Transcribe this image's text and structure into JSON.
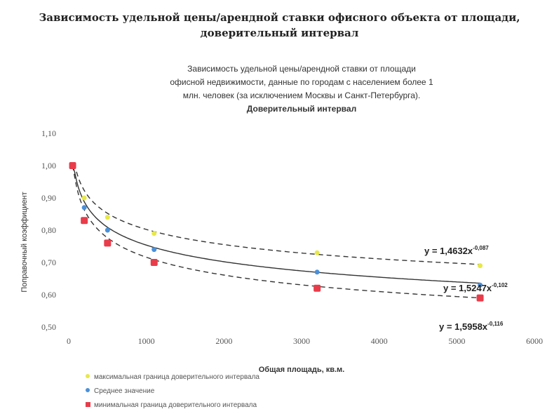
{
  "page_title": {
    "line1": "Зависимость удельной цены/арендной ставки офисного объекта от площади,",
    "line2": "доверительный интервал"
  },
  "chart_data": {
    "type": "scatter",
    "title_lines": [
      "Зависимость удельной цены/арендной ставки от площади",
      "офисной недвижимости, данные по городам с населением более 1",
      "млн. человек (за исключением Москвы и Санкт-Петербурга).",
      "Доверительный интервал"
    ],
    "xlabel": "Общая площадь, кв.м.",
    "ylabel": "Поправочный коэффициент",
    "xlim": [
      0,
      6000
    ],
    "ylim": [
      0.5,
      1.1
    ],
    "x_ticks": [
      "0",
      "1000",
      "2000",
      "3000",
      "4000",
      "5000",
      "6000"
    ],
    "y_ticks": [
      "0,50",
      "0,60",
      "0,70",
      "0,80",
      "0,90",
      "1,00",
      "1,10"
    ],
    "grid": false,
    "legend_position": "bottom-left",
    "series": [
      {
        "name": "максимальная граница доверительного интервала",
        "color": "#e8e84a",
        "marker": "circle",
        "x": [
          50,
          200,
          500,
          1100,
          3200,
          5300
        ],
        "y": [
          1.0,
          0.9,
          0.84,
          0.79,
          0.73,
          0.69
        ],
        "trend": {
          "a": 1.4632,
          "b": -0.087,
          "dash": true
        },
        "equation": {
          "base": "y = 1,4632x",
          "exp": "-0,087"
        }
      },
      {
        "name": "Среднее значение",
        "color": "#4a90d9",
        "marker": "circle",
        "x": [
          50,
          200,
          500,
          1100,
          3200,
          5300
        ],
        "y": [
          1.0,
          0.87,
          0.8,
          0.74,
          0.67,
          0.63
        ],
        "trend": {
          "a": 1.5247,
          "b": -0.102,
          "dash": false
        },
        "equation": {
          "base": "y = 1,5247x",
          "exp": "-0,102"
        }
      },
      {
        "name": "минимальная граница доверительного интервала",
        "color": "#e83c4a",
        "marker": "square",
        "x": [
          50,
          200,
          500,
          1100,
          3200,
          5300
        ],
        "y": [
          1.0,
          0.83,
          0.76,
          0.7,
          0.62,
          0.59
        ],
        "trend": {
          "a": 1.5958,
          "b": -0.116,
          "dash": true
        },
        "equation": {
          "base": "y = 1,5958x",
          "exp": "-0,116"
        }
      }
    ]
  }
}
